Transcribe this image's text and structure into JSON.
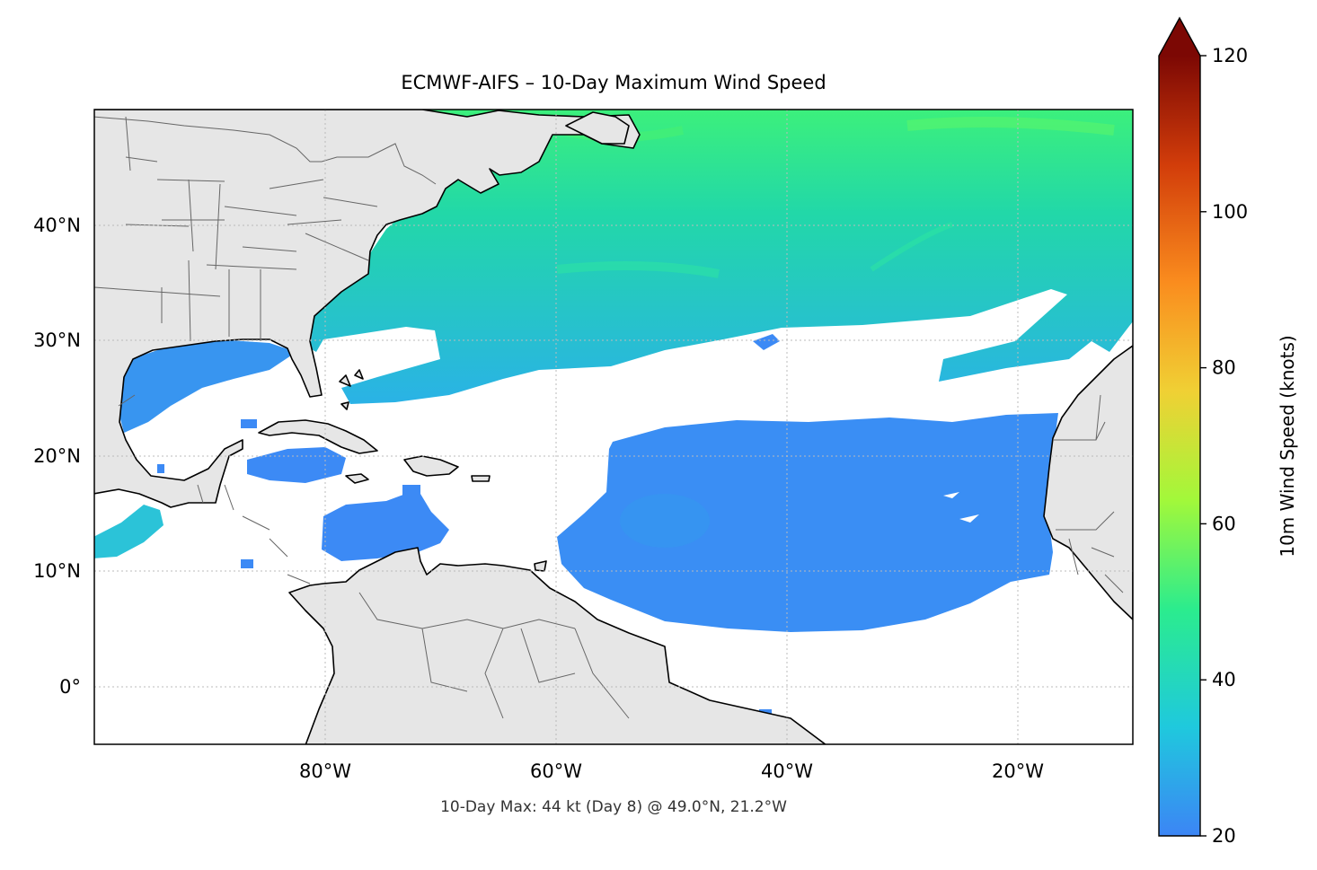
{
  "figure": {
    "title": "ECMWF-AIFS – 10-Day Maximum Wind Speed",
    "footnote": "10-Day Max: 44 kt (Day 8) @ 49.0°N, 21.2°W"
  },
  "map": {
    "extent": {
      "lon": [
        -100,
        -10
      ],
      "lat": [
        -5,
        50
      ]
    },
    "x_ticks": [
      {
        "lon": -80,
        "label": "80°W"
      },
      {
        "lon": -60,
        "label": "60°W"
      },
      {
        "lon": -40,
        "label": "40°W"
      },
      {
        "lon": -20,
        "label": "20°W"
      }
    ],
    "y_ticks": [
      {
        "lat": 40,
        "label": "40°N"
      },
      {
        "lat": 30,
        "label": "30°N"
      },
      {
        "lat": 20,
        "label": "20°N"
      },
      {
        "lat": 10,
        "label": "10°N"
      },
      {
        "lat": 0,
        "label": "0°"
      }
    ],
    "colors": {
      "land": "#e6e6e6",
      "ocean_below_threshold": "#ffffff",
      "coastline": "#000000",
      "borders": "#666666",
      "gridline": "#bbbbbb"
    }
  },
  "colorbar": {
    "label": "10m Wind Speed (knots)",
    "min": 20,
    "max": 120,
    "extend": "max",
    "ticks": [
      {
        "value": 20,
        "label": "20"
      },
      {
        "value": 40,
        "label": "40"
      },
      {
        "value": 60,
        "label": "60"
      },
      {
        "value": 80,
        "label": "80"
      },
      {
        "value": 100,
        "label": "100"
      },
      {
        "value": 120,
        "label": "120"
      }
    ],
    "colors": [
      "#3c85f5",
      "#1fc9dd",
      "#2bec8e",
      "#a2f83a",
      "#f0d034",
      "#fa8c1e",
      "#d23d0a",
      "#7c0804"
    ]
  }
}
